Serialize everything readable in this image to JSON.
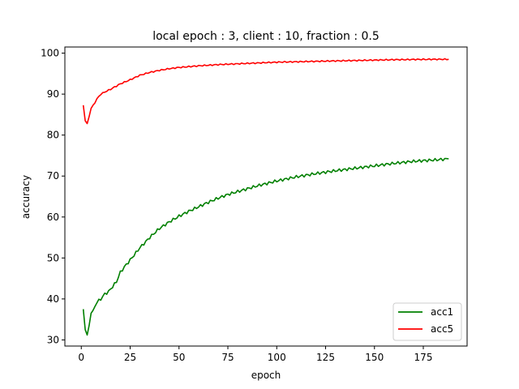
{
  "chart_data": {
    "type": "line",
    "title": "local epoch : 3, client : 10, fraction : 0.5",
    "xlabel": "epoch",
    "ylabel": "accuracy",
    "xlim": [
      -8.4,
      197.4
    ],
    "ylim": [
      28.5,
      101.5
    ],
    "xticks": [
      0,
      25,
      50,
      75,
      100,
      125,
      150,
      175
    ],
    "yticks": [
      30,
      40,
      50,
      60,
      70,
      80,
      90,
      100
    ],
    "grid": false,
    "legend_position": "lower-right",
    "series": [
      {
        "name": "acc1",
        "color": "#008000",
        "points": [
          [
            1,
            37.5
          ],
          [
            2,
            32.5
          ],
          [
            3,
            31.2
          ],
          [
            4,
            33.5
          ],
          [
            5,
            36.5
          ],
          [
            6,
            37.2
          ],
          [
            7,
            38.3
          ],
          [
            8,
            39.2
          ],
          [
            10,
            40.0
          ],
          [
            12,
            41.2
          ],
          [
            14,
            41.8
          ],
          [
            16,
            43.0
          ],
          [
            18,
            44.2
          ],
          [
            20,
            46.5
          ],
          [
            22,
            47.8
          ],
          [
            25,
            49.5
          ],
          [
            30,
            52.5
          ],
          [
            35,
            55.0
          ],
          [
            40,
            57.2
          ],
          [
            45,
            58.8
          ],
          [
            50,
            60.2
          ],
          [
            55,
            61.4
          ],
          [
            60,
            62.5
          ],
          [
            65,
            63.6
          ],
          [
            70,
            64.6
          ],
          [
            75,
            65.5
          ],
          [
            80,
            66.2
          ],
          [
            90,
            67.6
          ],
          [
            100,
            68.8
          ],
          [
            110,
            69.8
          ],
          [
            120,
            70.6
          ],
          [
            130,
            71.3
          ],
          [
            140,
            71.9
          ],
          [
            150,
            72.5
          ],
          [
            160,
            73.1
          ],
          [
            170,
            73.6
          ],
          [
            180,
            73.9
          ],
          [
            188,
            74.2
          ]
        ]
      },
      {
        "name": "acc5",
        "color": "#ff0000",
        "points": [
          [
            1,
            87.3
          ],
          [
            2,
            83.5
          ],
          [
            3,
            82.8
          ],
          [
            4,
            84.5
          ],
          [
            5,
            86.5
          ],
          [
            6,
            87.3
          ],
          [
            7,
            88.0
          ],
          [
            8,
            88.8
          ],
          [
            10,
            90.0
          ],
          [
            12,
            90.5
          ],
          [
            15,
            91.2
          ],
          [
            20,
            92.5
          ],
          [
            25,
            93.5
          ],
          [
            30,
            94.6
          ],
          [
            35,
            95.3
          ],
          [
            40,
            95.8
          ],
          [
            45,
            96.2
          ],
          [
            50,
            96.5
          ],
          [
            60,
            96.9
          ],
          [
            70,
            97.2
          ],
          [
            80,
            97.4
          ],
          [
            90,
            97.6
          ],
          [
            100,
            97.8
          ],
          [
            120,
            98.0
          ],
          [
            140,
            98.2
          ],
          [
            160,
            98.4
          ],
          [
            180,
            98.5
          ],
          [
            188,
            98.5
          ]
        ]
      }
    ]
  }
}
